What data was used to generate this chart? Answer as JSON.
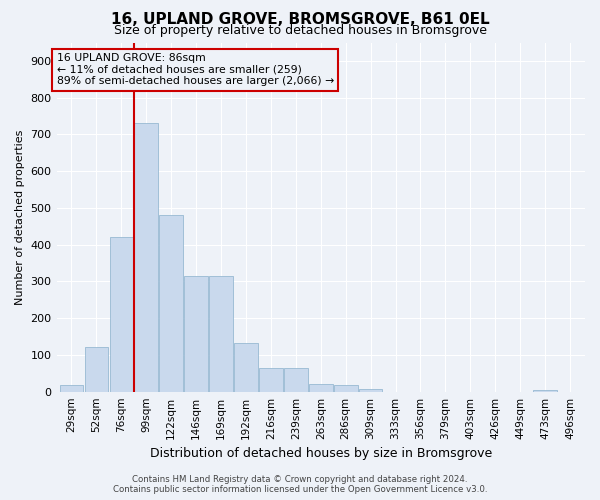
{
  "title": "16, UPLAND GROVE, BROMSGROVE, B61 0EL",
  "subtitle": "Size of property relative to detached houses in Bromsgrove",
  "xlabel": "Distribution of detached houses by size in Bromsgrove",
  "ylabel": "Number of detached properties",
  "categories": [
    "29sqm",
    "52sqm",
    "76sqm",
    "99sqm",
    "122sqm",
    "146sqm",
    "169sqm",
    "192sqm",
    "216sqm",
    "239sqm",
    "263sqm",
    "286sqm",
    "309sqm",
    "333sqm",
    "356sqm",
    "379sqm",
    "403sqm",
    "426sqm",
    "449sqm",
    "473sqm",
    "496sqm"
  ],
  "values": [
    18,
    122,
    420,
    730,
    480,
    315,
    315,
    132,
    65,
    65,
    20,
    18,
    8,
    0,
    0,
    0,
    0,
    0,
    0,
    4,
    0
  ],
  "bar_color": "#c9d9ed",
  "bar_edge_color": "#8ab0cc",
  "annotation_text": "16 UPLAND GROVE: 86sqm\n← 11% of detached houses are smaller (259)\n89% of semi-detached houses are larger (2,066) →",
  "annotation_box_color": "#cc0000",
  "footer_line1": "Contains HM Land Registry data © Crown copyright and database right 2024.",
  "footer_line2": "Contains public sector information licensed under the Open Government Licence v3.0.",
  "ylim": [
    0,
    950
  ],
  "yticks": [
    0,
    100,
    200,
    300,
    400,
    500,
    600,
    700,
    800,
    900
  ],
  "background_color": "#eef2f8",
  "grid_color": "#ffffff",
  "title_fontsize": 11,
  "subtitle_fontsize": 9,
  "tick_fontsize": 7.5,
  "red_line_x": 2.5
}
